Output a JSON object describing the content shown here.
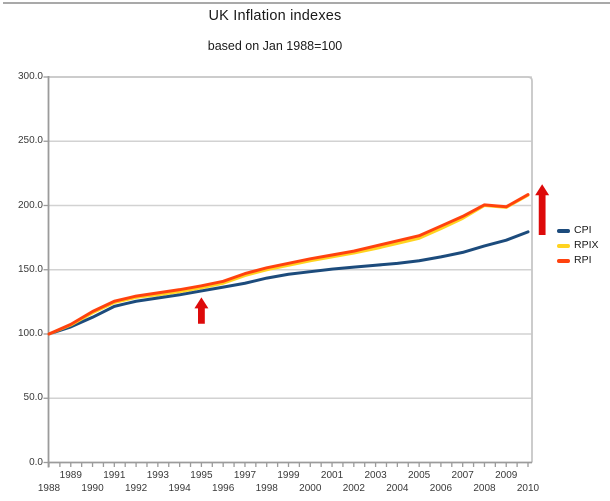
{
  "chart_data": {
    "type": "line",
    "title": "UK Inflation indexes",
    "subtitle": "based on Jan 1988=100",
    "xlabel": "",
    "ylabel": "",
    "ylim": [
      0,
      300
    ],
    "xlim": [
      1988,
      2010.2
    ],
    "grid": true,
    "legend_position": "right",
    "y_ticks": [
      300,
      250,
      200,
      150,
      100,
      50,
      0
    ],
    "y_tick_labels": [
      "300.0",
      "250.0",
      "200.0",
      "150.0",
      "100.0",
      "50.0",
      "0.0"
    ],
    "x_tick_years": [
      1988,
      1989,
      1990,
      1991,
      1992,
      1993,
      1994,
      1995,
      1996,
      1997,
      1998,
      1999,
      2000,
      2001,
      2002,
      2003,
      2004,
      2005,
      2006,
      2007,
      2008,
      2009,
      2010
    ],
    "x": [
      1988,
      1989,
      1990,
      1991,
      1992,
      1993,
      1994,
      1995,
      1996,
      1997,
      1998,
      1999,
      2000,
      2001,
      2002,
      2003,
      2004,
      2005,
      2006,
      2007,
      2008,
      2009,
      2010
    ],
    "series": [
      {
        "name": "CPI",
        "color": "#1c4b7c",
        "values": [
          100,
          105.5,
          113,
          121.5,
          125.5,
          128,
          130.5,
          133.5,
          136.5,
          139.5,
          143.5,
          146.5,
          148.5,
          150.5,
          152,
          153.5,
          155,
          157,
          160,
          163.5,
          168.5,
          173,
          179.5
        ]
      },
      {
        "name": "RPIX",
        "color": "#ffd320",
        "values": [
          100,
          107,
          116.5,
          124.5,
          128.5,
          130.5,
          133,
          136,
          139.5,
          145.5,
          150,
          153.5,
          157,
          160,
          163,
          166.5,
          170.5,
          174.5,
          182,
          190,
          200,
          198.5,
          208
        ]
      },
      {
        "name": "RPI",
        "color": "#ff420e",
        "values": [
          100,
          107.5,
          117.5,
          125.5,
          129.5,
          132,
          134.5,
          137.5,
          141,
          147,
          151.5,
          155,
          158.5,
          161.5,
          164.5,
          168.5,
          172.5,
          176.5,
          184,
          191.5,
          200.5,
          199,
          208.5
        ]
      }
    ],
    "annotations": [
      {
        "type": "arrow-up",
        "color": "#dd0a0a",
        "x": 1995.0,
        "value_from": 108,
        "value_to": 128.5
      },
      {
        "type": "arrow-up",
        "color": "#dd0a0a",
        "x": 2010.65,
        "value_from": 177,
        "value_to": 216.5
      }
    ]
  }
}
